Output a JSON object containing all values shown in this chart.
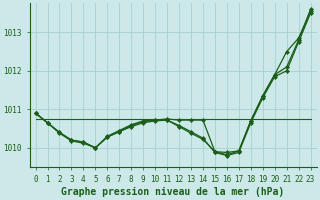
{
  "background_color": "#cce8e8",
  "grid_color": "#aad0d0",
  "line_color": "#1a5e1a",
  "title": "Graphe pression niveau de la mer (hPa)",
  "ylabel_ticks": [
    1010,
    1011,
    1012,
    1013
  ],
  "xlim": [
    -0.5,
    23.5
  ],
  "ylim": [
    1009.5,
    1013.75
  ],
  "series": [
    {
      "x": [
        0,
        1,
        2,
        3,
        4,
        5,
        6,
        7,
        8,
        9,
        10,
        11,
        12,
        13,
        14,
        15,
        16,
        17,
        18,
        19,
        20,
        21,
        22,
        23
      ],
      "y": [
        1010.75,
        1010.75,
        1010.75,
        1010.75,
        1010.75,
        1010.75,
        1010.75,
        1010.75,
        1010.75,
        1010.75,
        1010.75,
        1010.75,
        1010.75,
        1010.75,
        1010.75,
        1010.75,
        1010.75,
        1010.75,
        1010.75,
        1010.75,
        1010.75,
        1010.75,
        1010.75,
        1010.75
      ],
      "marker": false,
      "linewidth": 0.8
    },
    {
      "x": [
        0,
        1,
        2,
        3,
        4,
        5,
        6,
        7,
        8,
        9,
        10,
        11,
        12,
        13,
        14,
        15,
        16,
        17,
        18,
        19,
        20,
        21,
        22,
        23
      ],
      "y": [
        1010.9,
        1010.65,
        1010.4,
        1010.2,
        1010.15,
        1010.0,
        1010.3,
        1010.45,
        1010.6,
        1010.7,
        1010.72,
        1010.75,
        1010.72,
        1010.72,
        1010.72,
        1009.9,
        1009.88,
        1009.92,
        1010.7,
        1011.35,
        1011.9,
        1012.5,
        1012.85,
        1013.55
      ],
      "marker": "D",
      "markersize": 2.2,
      "linewidth": 0.9
    },
    {
      "x": [
        0,
        1,
        2,
        3,
        4,
        5,
        6,
        7,
        8,
        9,
        10,
        11,
        12,
        13,
        14,
        15,
        16,
        17,
        18,
        19,
        20,
        21,
        22,
        23
      ],
      "y": [
        1010.9,
        1010.65,
        1010.4,
        1010.2,
        1010.15,
        1010.0,
        1010.28,
        1010.42,
        1010.58,
        1010.68,
        1010.72,
        1010.72,
        1010.55,
        1010.38,
        1010.22,
        1009.9,
        1009.82,
        1009.92,
        1010.7,
        1011.35,
        1011.9,
        1012.1,
        1012.8,
        1013.6
      ],
      "marker": "D",
      "markersize": 2.2,
      "linewidth": 0.9
    },
    {
      "x": [
        0,
        1,
        2,
        3,
        4,
        5,
        6,
        7,
        8,
        9,
        10,
        11,
        12,
        13,
        14,
        15,
        16,
        17,
        18,
        19,
        20,
        21,
        22,
        23
      ],
      "y": [
        1010.9,
        1010.65,
        1010.38,
        1010.18,
        1010.12,
        1010.0,
        1010.28,
        1010.42,
        1010.55,
        1010.65,
        1010.7,
        1010.72,
        1010.58,
        1010.42,
        1010.25,
        1009.88,
        1009.8,
        1009.88,
        1010.65,
        1011.3,
        1011.85,
        1012.0,
        1012.75,
        1013.5
      ],
      "marker": "D",
      "markersize": 2.2,
      "linewidth": 0.9
    }
  ],
  "xtick_labels": [
    "0",
    "1",
    "2",
    "3",
    "4",
    "5",
    "6",
    "7",
    "8",
    "9",
    "10",
    "11",
    "12",
    "13",
    "14",
    "15",
    "16",
    "17",
    "18",
    "19",
    "20",
    "21",
    "22",
    "23"
  ],
  "tick_fontsize": 5.5,
  "title_fontsize": 7
}
